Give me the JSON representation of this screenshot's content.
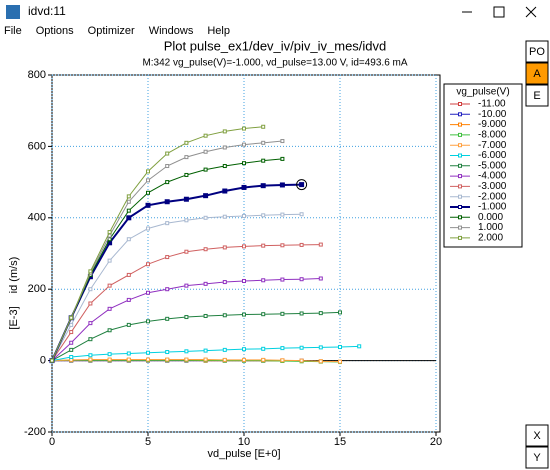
{
  "window": {
    "title": "idvd:11",
    "menu": [
      "File",
      "Options",
      "Optimizer",
      "Windows",
      "Help"
    ],
    "buttons": [
      "PO",
      "A",
      "E"
    ],
    "bottom_buttons": [
      "X",
      "Y"
    ]
  },
  "chart_data": {
    "type": "line",
    "title": "Plot pulse_ex1/dev_iv/piv_iv_mes/idvd",
    "subtitle": "M:342 vg_pulse(V)=-1.000, vd_pulse=13.00 V, id=493.6 mA",
    "x_label": "vd_pulse [E+0]",
    "y_label": "id (m/s)",
    "y_unit": "[E-3]",
    "legend_title": "vg_pulse(V)",
    "grid": true,
    "xlim": [
      0,
      20
    ],
    "xticks": [
      0,
      5,
      10,
      15,
      20
    ],
    "ylim": [
      -200,
      800
    ],
    "yticks": [
      -200,
      0,
      200,
      400,
      600,
      800
    ],
    "x": [
      0,
      1,
      2,
      3,
      4,
      5,
      6,
      7,
      8,
      9,
      10,
      11,
      12,
      13,
      14,
      15,
      16
    ],
    "series": [
      {
        "name": "-11.00",
        "color": "#d04040",
        "values": [
          0,
          0,
          0,
          0,
          0,
          0,
          0,
          0,
          0,
          0,
          0,
          0,
          0,
          null,
          null,
          null,
          null
        ]
      },
      {
        "name": "-10.00",
        "color": "#2020c0",
        "values": [
          0,
          0,
          0,
          0,
          0,
          0,
          0,
          0,
          0,
          0,
          0,
          0,
          0,
          0,
          null,
          null,
          null
        ]
      },
      {
        "name": "-9.000",
        "color": "#ff8000",
        "values": [
          0,
          1,
          1,
          1,
          1,
          1,
          1,
          1,
          0,
          0,
          0,
          0,
          -1,
          -1,
          -2,
          null,
          null
        ]
      },
      {
        "name": "-8.000",
        "color": "#40c040",
        "values": [
          0,
          1,
          1,
          1,
          1,
          1,
          1,
          1,
          1,
          0,
          0,
          0,
          -1,
          -2,
          -3,
          -4,
          null
        ]
      },
      {
        "name": "-7.000",
        "color": "#ffa040",
        "values": [
          0,
          2,
          3,
          3,
          3,
          3,
          3,
          3,
          3,
          2,
          2,
          2,
          1,
          0,
          -2,
          -3,
          null
        ]
      },
      {
        "name": "-6.000",
        "color": "#00d0e0",
        "values": [
          0,
          10,
          15,
          18,
          20,
          22,
          24,
          26,
          28,
          30,
          32,
          33,
          35,
          36,
          37,
          38,
          40
        ]
      },
      {
        "name": "-5.000",
        "color": "#208040",
        "values": [
          0,
          30,
          60,
          85,
          100,
          110,
          117,
          122,
          125,
          127,
          129,
          130,
          131,
          132,
          133,
          135,
          null
        ]
      },
      {
        "name": "-4.000",
        "color": "#9030c0",
        "values": [
          0,
          50,
          105,
          145,
          170,
          190,
          200,
          210,
          215,
          220,
          223,
          225,
          227,
          228,
          230,
          null,
          null
        ]
      },
      {
        "name": "-3.000",
        "color": "#d06060",
        "values": [
          0,
          80,
          160,
          210,
          240,
          270,
          290,
          305,
          312,
          317,
          320,
          322,
          323,
          324,
          325,
          null,
          null
        ]
      },
      {
        "name": "-2.000",
        "color": "#a8b8d0",
        "values": [
          0,
          100,
          200,
          280,
          340,
          370,
          385,
          393,
          400,
          403,
          405,
          407,
          409,
          410,
          null,
          null,
          null
        ]
      },
      {
        "name": "-1.000",
        "color": "#000080",
        "bold": true,
        "values": [
          0,
          120,
          235,
          330,
          400,
          435,
          445,
          452,
          462,
          475,
          485,
          490,
          492,
          493,
          null,
          null,
          null
        ]
      },
      {
        "name": "0.000",
        "color": "#006000",
        "values": [
          0,
          120,
          240,
          340,
          420,
          470,
          500,
          520,
          535,
          545,
          553,
          560,
          565,
          null,
          null,
          null,
          null
        ]
      },
      {
        "name": "1.000",
        "color": "#909090",
        "values": [
          0,
          120,
          245,
          350,
          445,
          505,
          545,
          570,
          585,
          597,
          605,
          610,
          615,
          null,
          null,
          null,
          null
        ]
      },
      {
        "name": "2.000",
        "color": "#80a040",
        "values": [
          0,
          120,
          250,
          360,
          460,
          530,
          580,
          610,
          630,
          642,
          650,
          655,
          null,
          null,
          null,
          null,
          null
        ]
      }
    ]
  }
}
